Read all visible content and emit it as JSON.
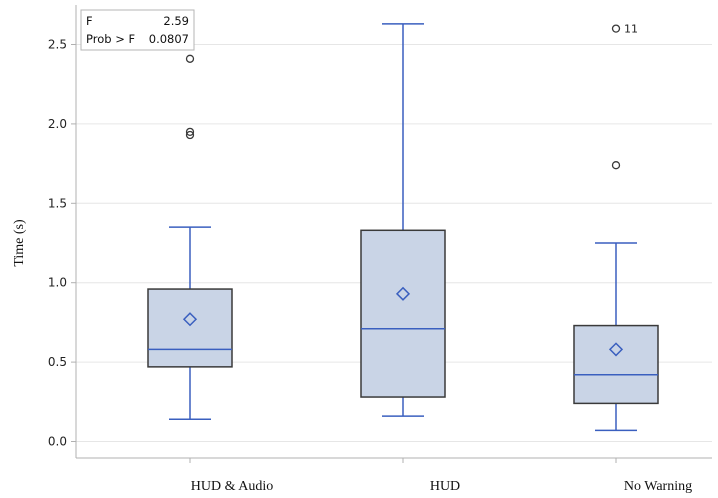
{
  "chart_data": {
    "type": "box",
    "ylabel": "Time (s)",
    "xlabel": "",
    "ylim": [
      -0.09,
      2.75
    ],
    "yticks": [
      0.0,
      0.5,
      1.0,
      1.5,
      2.0,
      2.5
    ],
    "ytick_labels": [
      "0.0",
      "0.5",
      "1.0",
      "1.5",
      "2.0",
      "2.5"
    ],
    "grid": true,
    "categories": [
      "HUD & Audio",
      "HUD",
      "No Warning"
    ],
    "boxes": [
      {
        "name": "HUD & Audio",
        "whisker_low": 0.14,
        "q1": 0.47,
        "median": 0.58,
        "q3": 0.96,
        "whisker_high": 1.35,
        "mean": 0.77,
        "outliers": [
          1.93,
          1.95,
          2.41
        ],
        "outlier_labels": [
          "",
          "",
          ""
        ]
      },
      {
        "name": "HUD",
        "whisker_low": 0.16,
        "q1": 0.28,
        "median": 0.71,
        "q3": 1.33,
        "whisker_high": 2.63,
        "mean": 0.93,
        "outliers": [],
        "outlier_labels": []
      },
      {
        "name": "No Warning",
        "whisker_low": 0.07,
        "q1": 0.24,
        "median": 0.42,
        "q3": 0.73,
        "whisker_high": 1.25,
        "mean": 0.58,
        "outliers": [
          1.74,
          2.6
        ],
        "outlier_labels": [
          "",
          "11"
        ]
      }
    ],
    "stats": {
      "f_label": "F",
      "f_value": "2.59",
      "p_label": "Prob > F",
      "p_value": "0.0807"
    },
    "colors": {
      "box_fill": "#c9d4e6",
      "box_edge": "#3a3a3a",
      "whisker": "#3a5fbf",
      "median": "#3a5fbf",
      "mean": "#3a5fbf",
      "outlier": "#3a3a3a",
      "grid": "#e6e6e6",
      "axis": "#b0b0b0"
    }
  }
}
